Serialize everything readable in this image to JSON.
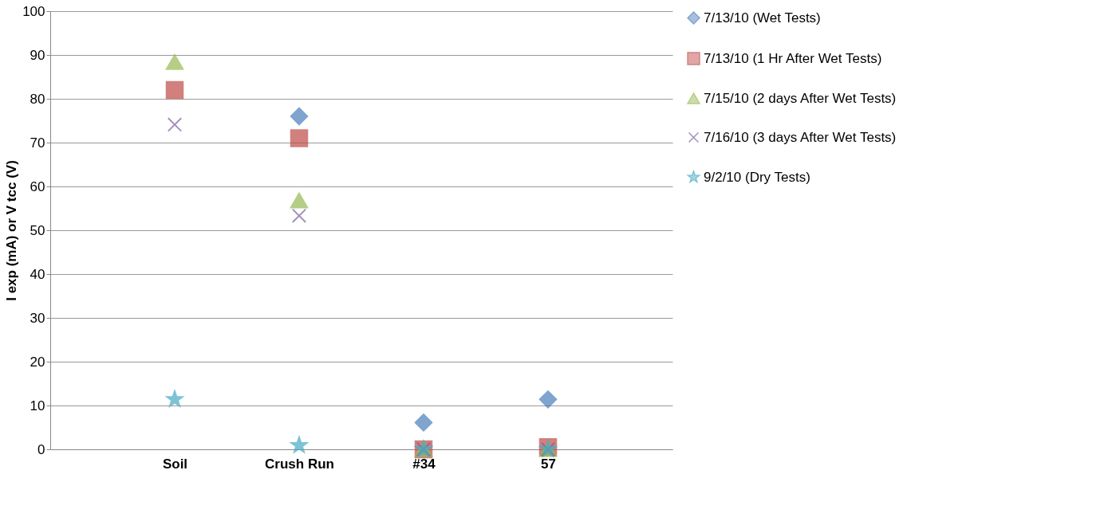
{
  "chart_data": {
    "type": "scatter",
    "ylabel": "I exp (mA) or V tcc (V)",
    "categories": [
      "Soil",
      "Crush Run",
      "#34",
      "57"
    ],
    "series": [
      {
        "name": "7/13/10 (Wet Tests)",
        "color": "#4a7ebb",
        "marker": "diamond",
        "values": [
          null,
          76,
          6.1,
          11.4
        ]
      },
      {
        "name": "7/13/10 (1 Hr After Wet Tests)",
        "color": "#be4b48",
        "marker": "square",
        "values": [
          82,
          71,
          0,
          0.5
        ]
      },
      {
        "name": "7/15/10 (2 days After Wet Tests)",
        "color": "#98b954",
        "marker": "triangle",
        "values": [
          88.4,
          56.8,
          0,
          0
        ]
      },
      {
        "name": "7/16/10 (3 days After Wet Tests)",
        "color": "#7d60a0",
        "marker": "cross",
        "values": [
          74.1,
          53.3,
          0,
          0
        ]
      },
      {
        "name": "9/2/10 (Dry Tests)",
        "color": "#46aac5",
        "marker": "star",
        "values": [
          11.4,
          0.9,
          0,
          0
        ]
      }
    ],
    "ylim": [
      0,
      100
    ],
    "yticks": [
      0,
      10,
      20,
      30,
      40,
      50,
      60,
      70,
      80,
      90,
      100
    ],
    "grid": "y",
    "legend": "right"
  }
}
